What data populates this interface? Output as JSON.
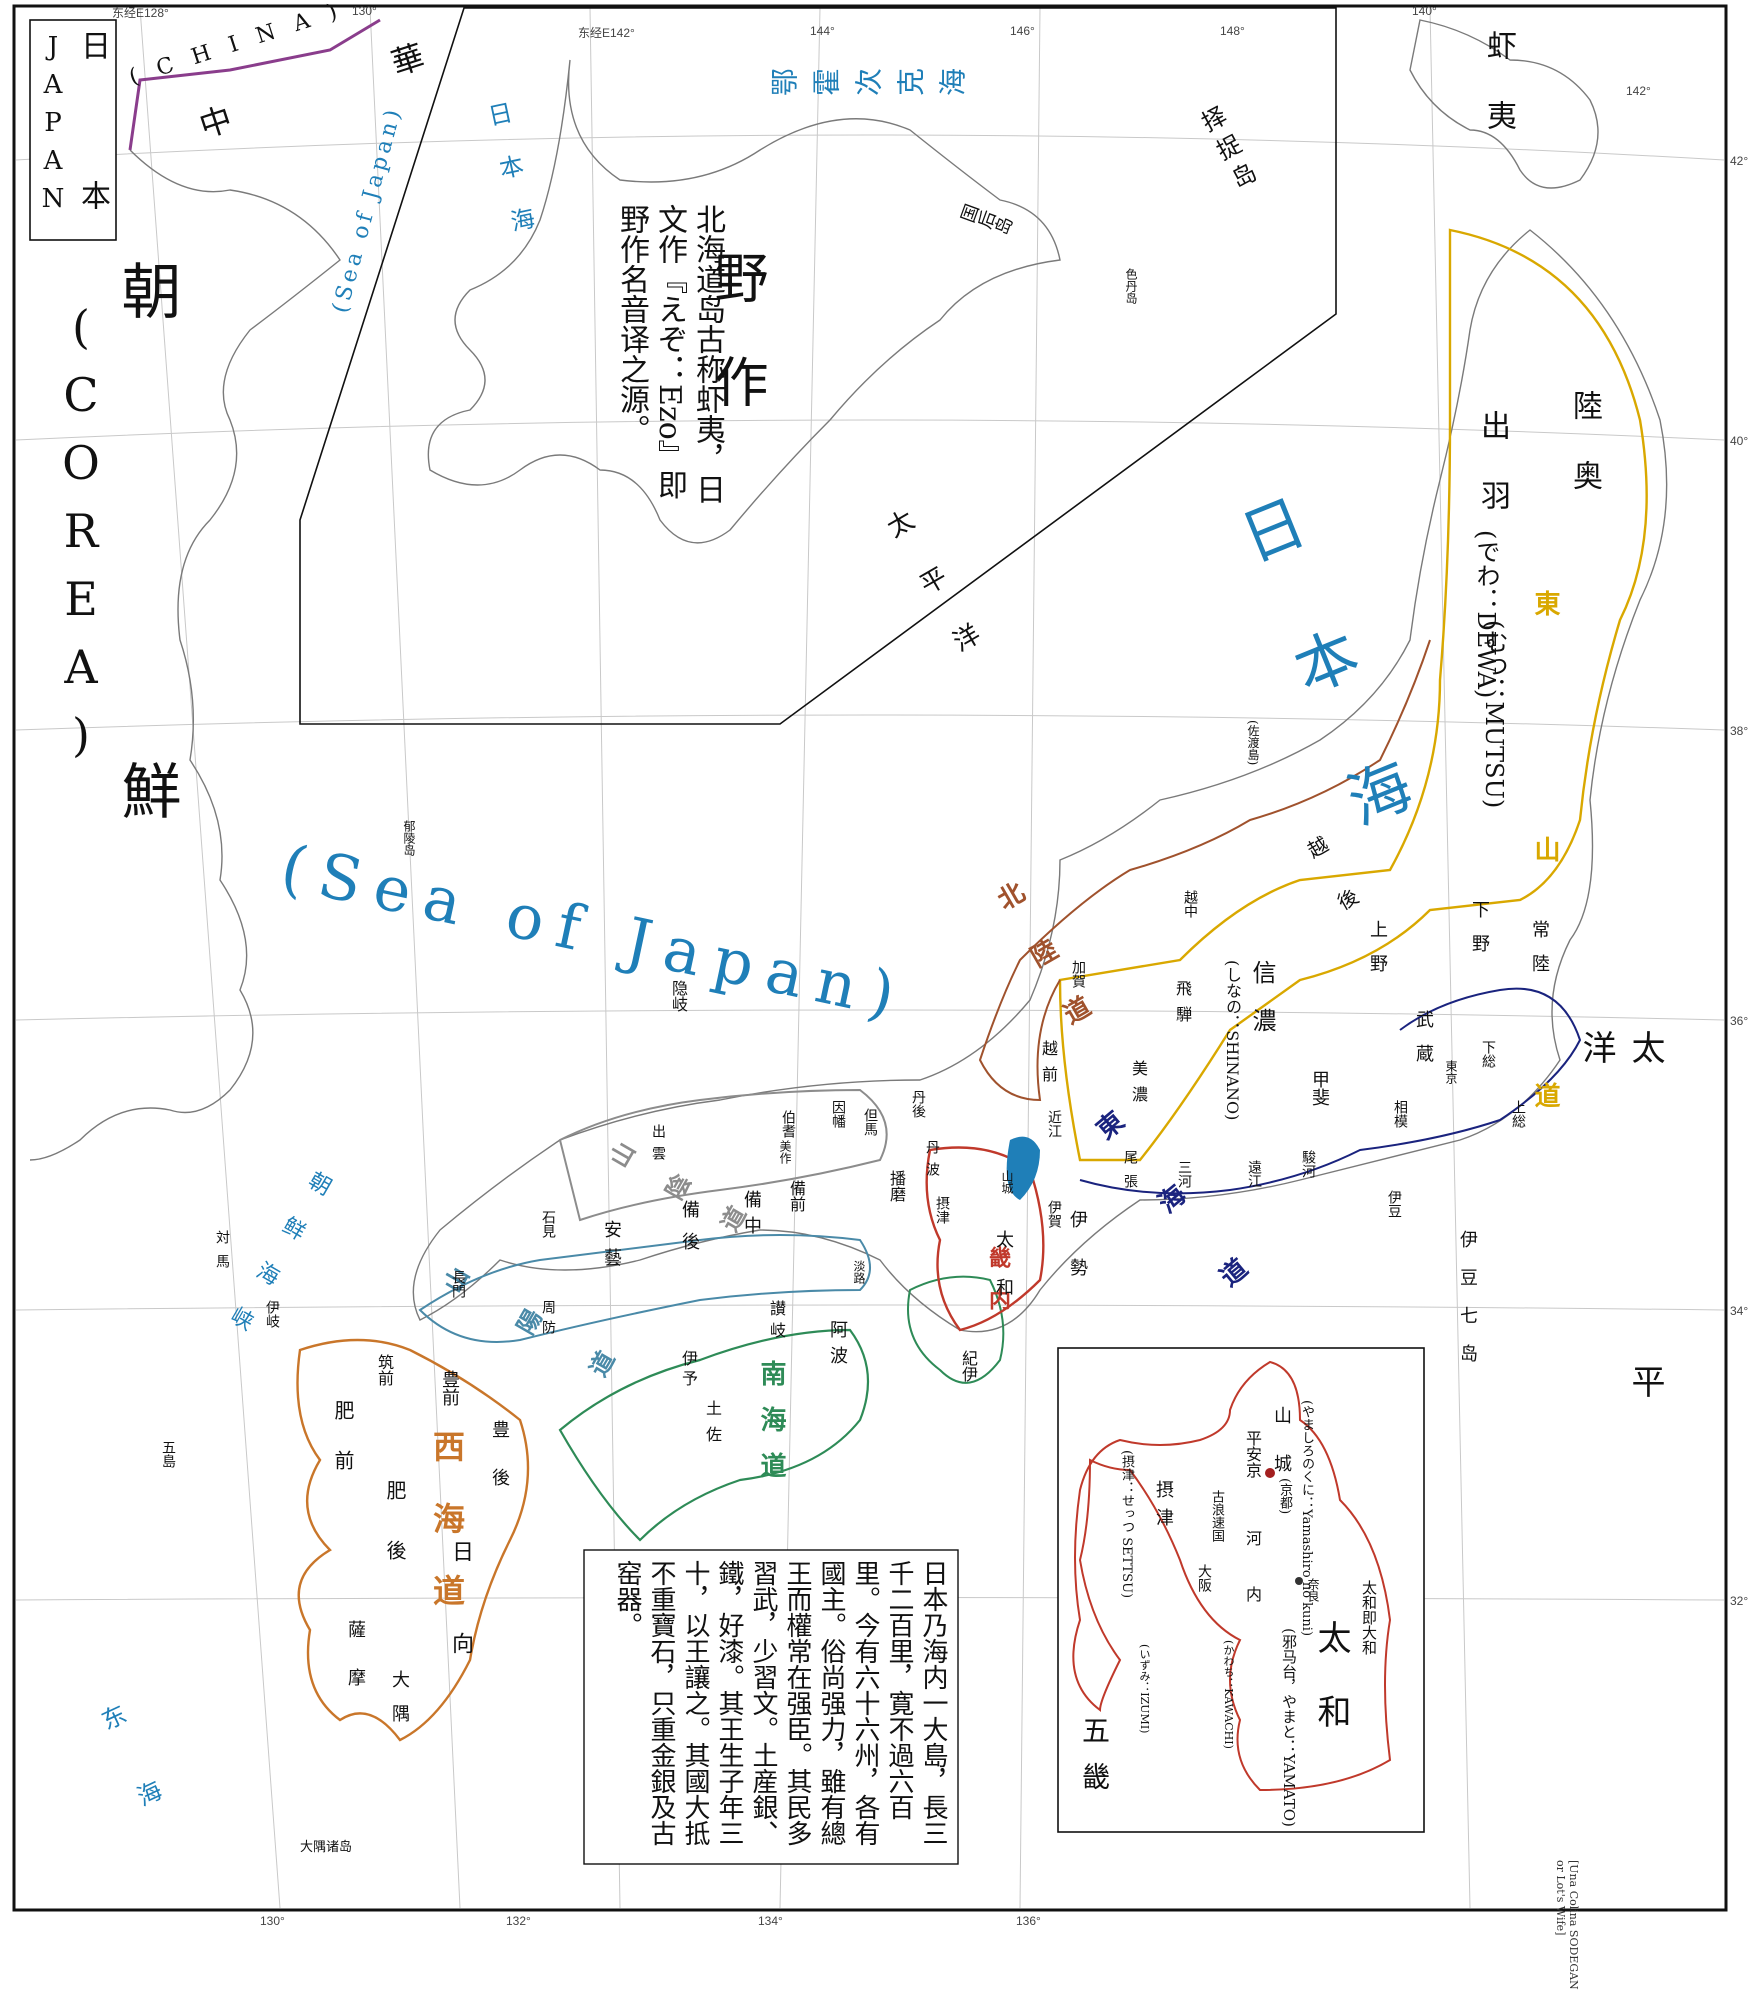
{
  "colors": {
    "sea": "#1f7fb8",
    "china_border": "#8a3d8c",
    "dongshan": "#d9a800",
    "beilu": "#a0522d",
    "donghai": "#1a237e",
    "shanyin": "#8c8c8c",
    "shanyang": "#4a8aa8",
    "nanhai": "#2e8b57",
    "xihai": "#c9762a",
    "jinai": "#c0392b"
  },
  "ticks": {
    "top": [
      "东经E128°",
      "130°",
      "东经E142°",
      "144°",
      "146°",
      "148°",
      "140°",
      "142°"
    ],
    "bottom": [
      "130°",
      "132°",
      "134°",
      "136°"
    ],
    "right": [
      "42°",
      "40°",
      "38°",
      "36°",
      "34°",
      "32°"
    ]
  },
  "corner_box": {
    "title_cn": "日本",
    "title_en": "JAPAN"
  },
  "china": {
    "name": "中華",
    "name_en": "(CHINA)"
  },
  "korea": {
    "name": "朝鮮",
    "name_en": "(COREA)"
  },
  "seas": {
    "japan_sea_cn": "日本海",
    "japan_sea_en": "(Sea of Japan)",
    "inset_sea_cn": "日本海",
    "inset_sea_en": "(Sea of Japan)",
    "okhotsk": "鄂霍次克海",
    "inset_pacific": "太平洋",
    "pacific": "太平洋",
    "korea_strait": "朝鲜海峡",
    "east_sea": "东海"
  },
  "hokkaido_inset": {
    "title": "野作",
    "note": "北海道岛古称虾夷，日文作『えぞ：Ezo』即野作名音译之源。"
  },
  "islands": {
    "ezo": "虾夷",
    "etorofu": "择捉岛",
    "kunashiri": "国后岛",
    "shikotan": "色丹岛",
    "sado": "(佐渡島)",
    "oki": "隐岐",
    "ulleung": "郁陵岛",
    "osumi": "大隅诸岛",
    "izu_seven": "伊豆七岛"
  },
  "circuits": {
    "dongshan": "東山道",
    "beilu": "北陸道",
    "donghai": "東海道",
    "shanyin": "山陰道",
    "shanyang": "山陽道",
    "nanhai": "南海道",
    "xihai": "西海道",
    "jinai": "畿内"
  },
  "provinces": {
    "mutsu": "陸奥",
    "mutsu_en": "(むつ：MUTSU)",
    "dewa": "出羽",
    "dewa_en": "(でわ：DEWA)",
    "echigo": "越後",
    "shinano": "信濃",
    "shinano_en": "(しなの：SHINANO)",
    "kozuke": "上野",
    "shimotsuke": "下野",
    "hitachi": "常陸",
    "musashi": "武蔵",
    "kai": "甲斐",
    "sagami": "相模",
    "kazusa": "上総",
    "shimousa": "下総",
    "hida": "飛騨",
    "mino": "美濃",
    "etchu": "越中",
    "kaga": "加賀",
    "echizen": "越前",
    "owari": "尾張",
    "mikawa": "三河",
    "totomi": "遠江",
    "suruga": "駿河",
    "izu": "伊豆",
    "omi": "近江",
    "iga": "伊賀",
    "ise": "伊勢",
    "tamba": "丹波",
    "tango": "丹後",
    "tajima": "但馬",
    "inaba": "因幡",
    "hoki": "伯耆",
    "izumo": "出雲",
    "iwami": "石見",
    "nagato": "長門",
    "suo": "周防",
    "aki": "安藝",
    "bingo": "備後",
    "bitchu": "備中",
    "bizen": "備前",
    "mimasaka": "美作",
    "harima": "播磨",
    "awaji": "淡路",
    "sanuki": "讃岐",
    "awa": "阿波",
    "iyo": "伊予",
    "tosa": "土佐",
    "kii": "紀伊",
    "chikuzen": "筑前",
    "buzen": "豊前",
    "bungo": "豊後",
    "hizen": "肥前",
    "higo": "肥後",
    "hyuga": "日向",
    "satsuma": "薩摩",
    "osumi": "大隅",
    "iki": "伊岐",
    "tsushima": "対馬",
    "goto": "五島",
    "yamato": "太和",
    "yamashiro": "山城",
    "settsu": "摂津",
    "edo": "東京"
  },
  "history_box": {
    "text": "日本乃海内一大島，長三千二百里，寛不過六百里。今有六十六州，各有國主。俗尚强力，雖有總王而權常在强臣。其民多習武，少習文。土産銀、鐵，好漆。其王生子年三十，以王讓之。其國大抵不重寶石，只重金銀及古窑器。"
  },
  "gokinai_inset": {
    "title": "五畿",
    "yamashiro": "山城",
    "yamashiro_en": "(やましろのくに：Yamashiro no kuni)",
    "heian": "平安京",
    "kyoto": "(京都)",
    "settsu": "摂津",
    "settsu_en": "(摂津：せっつ SETTSU)",
    "naniwa": "古浪速国",
    "osaka": "大阪",
    "kawachi": "河内",
    "kawachi_en": "(かわち：KAWACHI)",
    "izumi": "(いずみ：IZUMI)",
    "nara": "奈良",
    "yamato": "太和",
    "yamato_en": "(邪马台，やまと：YAMATO)",
    "note": "太和即大和"
  },
  "margin_note": "[Una Colina SODEGAN or Lot's Wife]"
}
